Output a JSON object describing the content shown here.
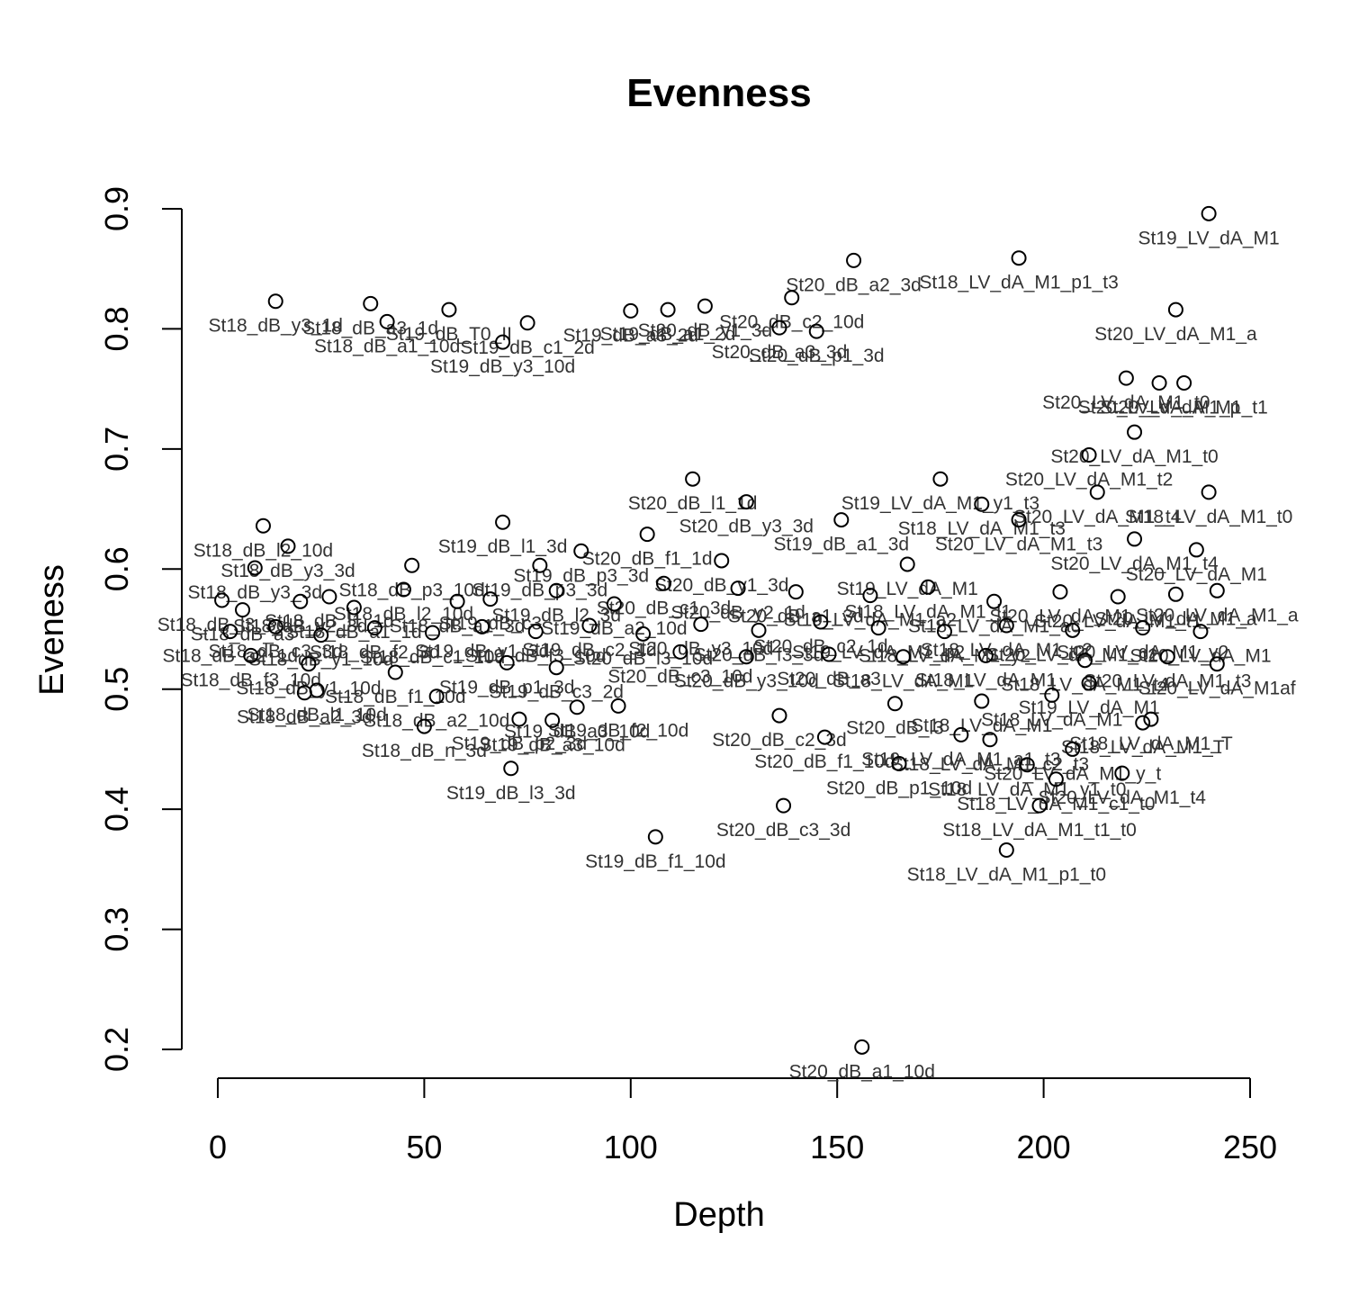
{
  "chart_data": {
    "type": "scatter",
    "title": "Evenness",
    "xlabel": "Depth",
    "ylabel": "Eveness",
    "xlim": [
      0,
      250
    ],
    "ylim": [
      0.2,
      0.9
    ],
    "xticks": [
      0,
      50,
      100,
      150,
      200,
      250
    ],
    "yticks": [
      0.2,
      0.3,
      0.4,
      0.5,
      0.6,
      0.7,
      0.8,
      0.9
    ],
    "grid": false,
    "points": [
      {
        "x": 240,
        "y": 0.896,
        "label": "St19_LV_dA_M1"
      },
      {
        "x": 194,
        "y": 0.859,
        "label": "St18_LV_dA_M1_p1_t3"
      },
      {
        "x": 154,
        "y": 0.857,
        "label": "St20_dB_a2_3d"
      },
      {
        "x": 14,
        "y": 0.823,
        "label": "St18_dB_y3_1d"
      },
      {
        "x": 37,
        "y": 0.821,
        "label": "St18_dB_a3_1d"
      },
      {
        "x": 41,
        "y": 0.806,
        "label": "St18_dB_a1_10d"
      },
      {
        "x": 56,
        "y": 0.816,
        "label": "St19_dB_T0_II"
      },
      {
        "x": 75,
        "y": 0.805,
        "label": "St19_dB_c1_2d"
      },
      {
        "x": 69,
        "y": 0.789,
        "label": "St19_dB_y3_10d"
      },
      {
        "x": 100,
        "y": 0.815,
        "label": "St19_dB_a3_2d"
      },
      {
        "x": 109,
        "y": 0.816,
        "label": "St19_dB_a1_2d"
      },
      {
        "x": 118,
        "y": 0.819,
        "label": "St20_dB_y1_3d"
      },
      {
        "x": 139,
        "y": 0.826,
        "label": "St20_dB_c2_10d"
      },
      {
        "x": 145,
        "y": 0.798,
        "label": "St20_dB_p1_3d"
      },
      {
        "x": 136,
        "y": 0.801,
        "label": "St20_dB_a3_3d"
      },
      {
        "x": 232,
        "y": 0.816,
        "label": "St20_LV_dA_M1_a"
      },
      {
        "x": 220,
        "y": 0.759,
        "label": "St20_LV_dA_M1_t0"
      },
      {
        "x": 228,
        "y": 0.755,
        "label": "St20_LV_dA_M1_p"
      },
      {
        "x": 234,
        "y": 0.755,
        "label": "St20_LV_dA_M1_t1"
      },
      {
        "x": 222,
        "y": 0.714,
        "label": "St20_LV_dA_M1_t0"
      },
      {
        "x": 211,
        "y": 0.695,
        "label": "St20_LV_dA_M1_t2"
      },
      {
        "x": 240,
        "y": 0.664,
        "label": "St18_LV_dA_M1_t0"
      },
      {
        "x": 115,
        "y": 0.675,
        "label": "St20_dB_l1_1d"
      },
      {
        "x": 128,
        "y": 0.656,
        "label": "St20_dB_y3_3d"
      },
      {
        "x": 175,
        "y": 0.675,
        "label": "St19_LV_dA_M1_y1_t3"
      },
      {
        "x": 185,
        "y": 0.654,
        "label": "St18_LV_dA_M1_t3"
      },
      {
        "x": 11,
        "y": 0.636,
        "label": "St18_dB_l2_10d"
      },
      {
        "x": 17,
        "y": 0.619,
        "label": "St18_dB_y3_3d"
      },
      {
        "x": 69,
        "y": 0.639,
        "label": "St19_dB_l1_3d"
      },
      {
        "x": 88,
        "y": 0.615,
        "label": "St19_dB_p3_3d"
      },
      {
        "x": 104,
        "y": 0.629,
        "label": "St20_dB_f1_1d"
      },
      {
        "x": 151,
        "y": 0.641,
        "label": "St19_dB_a1_3d"
      },
      {
        "x": 194,
        "y": 0.641,
        "label": "St20_LV_dA_M1_t3"
      },
      {
        "x": 213,
        "y": 0.664,
        "label": "St20_LV_dA_M1_t4"
      },
      {
        "x": 237,
        "y": 0.616,
        "label": "St20_LV_dA_M1"
      },
      {
        "x": 9,
        "y": 0.601,
        "label": "St18_dB_y3_3d"
      },
      {
        "x": 47,
        "y": 0.603,
        "label": "St18_dB_p3_10d"
      },
      {
        "x": 78,
        "y": 0.603,
        "label": "St19_dB_p3_3d"
      },
      {
        "x": 122,
        "y": 0.607,
        "label": "St20_dB_y1_3d"
      },
      {
        "x": 167,
        "y": 0.604,
        "label": "St19_LV_dA_M1"
      },
      {
        "x": 222,
        "y": 0.625,
        "label": "St20_LV_dA_M1_t4"
      },
      {
        "x": 1,
        "y": 0.574,
        "label": "St18_dB_l3_3d"
      },
      {
        "x": 6,
        "y": 0.566,
        "label": "St18_dB_a3"
      },
      {
        "x": 20,
        "y": 0.573,
        "label": "St18_dB_y2_3d"
      },
      {
        "x": 27,
        "y": 0.577,
        "label": "St18_dB_l1_1d"
      },
      {
        "x": 33,
        "y": 0.568,
        "label": "St18_dB_a1_1d"
      },
      {
        "x": 45,
        "y": 0.583,
        "label": "St18_dB_l2_10d"
      },
      {
        "x": 58,
        "y": 0.573,
        "label": "St18_dB_a1_3d"
      },
      {
        "x": 66,
        "y": 0.575,
        "label": "St19_dB_c3"
      },
      {
        "x": 82,
        "y": 0.582,
        "label": "St19_dB_l2_3d"
      },
      {
        "x": 96,
        "y": 0.571,
        "label": "St19_dB_a2_10d"
      },
      {
        "x": 108,
        "y": 0.588,
        "label": "St20_dB_c1_3d"
      },
      {
        "x": 126,
        "y": 0.584,
        "label": "St20_dB_y2_1d"
      },
      {
        "x": 140,
        "y": 0.581,
        "label": "St20_dB_a1_3d"
      },
      {
        "x": 158,
        "y": 0.578,
        "label": "St19_LV_dA_M1_a2"
      },
      {
        "x": 172,
        "y": 0.585,
        "label": "St18_LV_dA_M1_l1"
      },
      {
        "x": 188,
        "y": 0.573,
        "label": "St18_LV_dA_M1_ac"
      },
      {
        "x": 204,
        "y": 0.581,
        "label": "St20_LV_dA_M1"
      },
      {
        "x": 218,
        "y": 0.577,
        "label": "St20_LV_dA_M1_t1"
      },
      {
        "x": 232,
        "y": 0.579,
        "label": "St20_LV_dA_M1_a"
      },
      {
        "x": 242,
        "y": 0.582,
        "label": "St20_LV_dA_M1_a"
      },
      {
        "x": 3,
        "y": 0.548,
        "label": "St18_dB_a2_1d"
      },
      {
        "x": 14,
        "y": 0.552,
        "label": "St18_dB_c3_3d"
      },
      {
        "x": 25,
        "y": 0.545,
        "label": "St18_dB_y1_10d"
      },
      {
        "x": 38,
        "y": 0.551,
        "label": "St18_dB_f2_3d"
      },
      {
        "x": 52,
        "y": 0.547,
        "label": "St18_dB_c1_10d"
      },
      {
        "x": 64,
        "y": 0.552,
        "label": "St19_dB_y1_3d"
      },
      {
        "x": 77,
        "y": 0.548,
        "label": "St19_dB_f3_10d"
      },
      {
        "x": 90,
        "y": 0.553,
        "label": "St19_dB_c2_1d"
      },
      {
        "x": 103,
        "y": 0.546,
        "label": "St20_dB_l3_10d"
      },
      {
        "x": 117,
        "y": 0.554,
        "label": "St20_dB_y3_10d"
      },
      {
        "x": 131,
        "y": 0.549,
        "label": "St20_dB_f3_3d"
      },
      {
        "x": 146,
        "y": 0.556,
        "label": "St20_dB_c2_1d"
      },
      {
        "x": 160,
        "y": 0.551,
        "label": "St19_LV_dA_M1_p2"
      },
      {
        "x": 176,
        "y": 0.548,
        "label": "St18_LV_dA_M1_y2"
      },
      {
        "x": 191,
        "y": 0.553,
        "label": "St18_LV_dA_M1_c2"
      },
      {
        "x": 207,
        "y": 0.549,
        "label": "St20_LV_dA_M1_c1"
      },
      {
        "x": 224,
        "y": 0.551,
        "label": "St20_LV_dA_M1_y2"
      },
      {
        "x": 238,
        "y": 0.548,
        "label": "St20_LV_dA_M1"
      },
      {
        "x": 8,
        "y": 0.528,
        "label": "St18_dB_f3_10d"
      },
      {
        "x": 22,
        "y": 0.521,
        "label": "St18_dB_y1_10d"
      },
      {
        "x": 43,
        "y": 0.514,
        "label": "St18_dB_f1_10d"
      },
      {
        "x": 70,
        "y": 0.522,
        "label": "St19_dB_p1_3d"
      },
      {
        "x": 82,
        "y": 0.518,
        "label": "St19_dB_c3_2d"
      },
      {
        "x": 112,
        "y": 0.531,
        "label": "St20_dB_c3_10d"
      },
      {
        "x": 128,
        "y": 0.527,
        "label": "St20_dB_y3_10d"
      },
      {
        "x": 148,
        "y": 0.529,
        "label": "St20_dB_a3"
      },
      {
        "x": 166,
        "y": 0.527,
        "label": "St18_LV_dA_M1"
      },
      {
        "x": 186,
        "y": 0.528,
        "label": "St18_LV_dA_M1"
      },
      {
        "x": 210,
        "y": 0.524,
        "label": "St18_LV_dA_M1_t4"
      },
      {
        "x": 230,
        "y": 0.527,
        "label": "St20_LV_dA_M1_t3"
      },
      {
        "x": 242,
        "y": 0.521,
        "label": "St20_LV_dA_M1af"
      },
      {
        "x": 21,
        "y": 0.497,
        "label": "St18_dB_a2_3d"
      },
      {
        "x": 24,
        "y": 0.499,
        "label": "St18_dB_l1_10d"
      },
      {
        "x": 53,
        "y": 0.494,
        "label": "St18_dB_a2_10d"
      },
      {
        "x": 97,
        "y": 0.486,
        "label": "St19_dB_f2_10d"
      },
      {
        "x": 87,
        "y": 0.485,
        "label": "St19_dB_a3_10d"
      },
      {
        "x": 164,
        "y": 0.488,
        "label": "St20_dB_l3"
      },
      {
        "x": 185,
        "y": 0.49,
        "label": "St18_LV_dA_M1"
      },
      {
        "x": 202,
        "y": 0.495,
        "label": "St18_LV_dA_M1"
      },
      {
        "x": 211,
        "y": 0.505,
        "label": "St19_LV_dA_M1"
      },
      {
        "x": 73,
        "y": 0.475,
        "label": "St19_dB_p2_3d"
      },
      {
        "x": 81,
        "y": 0.474,
        "label": "St19_dB_a3_10d"
      },
      {
        "x": 50,
        "y": 0.469,
        "label": "St18_dB_n_3d"
      },
      {
        "x": 136,
        "y": 0.478,
        "label": "St20_dB_c2_3d"
      },
      {
        "x": 147,
        "y": 0.46,
        "label": "St20_dB_f1_10d"
      },
      {
        "x": 180,
        "y": 0.462,
        "label": "St19_LV_dA_M1_a1_t3"
      },
      {
        "x": 187,
        "y": 0.458,
        "label": "St18_LV_dA_M1_c2_t3"
      },
      {
        "x": 224,
        "y": 0.472,
        "label": "St18_LV_dA_M1_T"
      },
      {
        "x": 226,
        "y": 0.475,
        "label": "St18_LV_dA_M1_T"
      },
      {
        "x": 207,
        "y": 0.45,
        "label": "St20_LV_dA_M1_y_t"
      },
      {
        "x": 71,
        "y": 0.434,
        "label": "St19_dB_l3_3d"
      },
      {
        "x": 165,
        "y": 0.438,
        "label": "St20_dB_p1_10d"
      },
      {
        "x": 196,
        "y": 0.437,
        "label": "St18_LV_dA_M1_y1_t0"
      },
      {
        "x": 203,
        "y": 0.425,
        "label": "St18_LV_dA_M1_c1_t0"
      },
      {
        "x": 219,
        "y": 0.43,
        "label": "St20_LV_dA_M1_t4"
      },
      {
        "x": 137,
        "y": 0.403,
        "label": "St20_dB_c3_3d"
      },
      {
        "x": 199,
        "y": 0.403,
        "label": "St18_LV_dA_M1_t1_t0"
      },
      {
        "x": 106,
        "y": 0.377,
        "label": "St19_dB_f1_10d"
      },
      {
        "x": 191,
        "y": 0.366,
        "label": "St18_LV_dA_M1_p1_t0"
      },
      {
        "x": 156,
        "y": 0.202,
        "label": "St20_dB_a1_10d"
      }
    ]
  }
}
